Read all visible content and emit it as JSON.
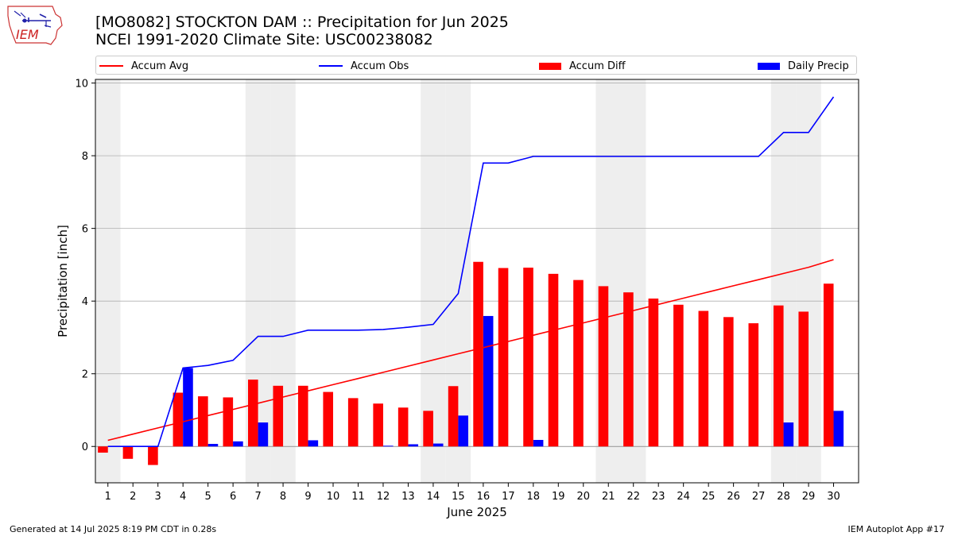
{
  "header": {
    "logo_text": "IEM",
    "title_line1": "[MO8082] STOCKTON DAM :: Precipitation for Jun 2025",
    "title_line2": "NCEI 1991-2020 Climate Site: USC00238082"
  },
  "legend": {
    "items": [
      {
        "label": "Accum Avg",
        "kind": "line",
        "color": "#ff0000"
      },
      {
        "label": "Accum Obs",
        "kind": "line",
        "color": "#0000ff"
      },
      {
        "label": "Accum Diff",
        "kind": "patch",
        "color": "#ff0000"
      },
      {
        "label": "Daily Precip",
        "kind": "patch",
        "color": "#0000ff"
      }
    ]
  },
  "footer": {
    "left": "Generated at 14 Jul 2025 8:19 PM CDT in 0.28s",
    "right": "IEM Autoplot App #17"
  },
  "colors": {
    "avg": "#ff0000",
    "obs": "#0000ff",
    "diff": "#ff0000",
    "daily": "#0000ff",
    "weekend_shade": "#eeeeee",
    "grid": "#b0b0b0"
  },
  "chart_data": {
    "type": "bar",
    "xlabel": "June 2025",
    "ylabel": "Precipitation [inch]",
    "xlim": [
      0.5,
      31
    ],
    "ylim": [
      -1,
      10.1
    ],
    "yticks": [
      0,
      2,
      4,
      6,
      8,
      10
    ],
    "grid": "y",
    "legend_position": "top",
    "x": [
      1,
      2,
      3,
      4,
      5,
      6,
      7,
      8,
      9,
      10,
      11,
      12,
      13,
      14,
      15,
      16,
      17,
      18,
      19,
      20,
      21,
      22,
      23,
      24,
      25,
      26,
      27,
      28,
      29,
      30
    ],
    "xtick_labels": [
      "1",
      "2",
      "3",
      "4",
      "5",
      "6",
      "7",
      "8",
      "9",
      "10",
      "11",
      "12",
      "13",
      "14",
      "15",
      "16",
      "17",
      "18",
      "19",
      "20",
      "21",
      "22",
      "23",
      "24",
      "25",
      "26",
      "27",
      "28",
      "29",
      "30"
    ],
    "shaded_days": [
      1,
      7,
      8,
      14,
      15,
      21,
      22,
      28,
      29
    ],
    "series": [
      {
        "name": "Accum Avg",
        "kind": "line",
        "values": [
          0.17,
          0.34,
          0.51,
          0.68,
          0.85,
          1.02,
          1.19,
          1.36,
          1.53,
          1.7,
          1.87,
          2.04,
          2.21,
          2.38,
          2.55,
          2.72,
          2.89,
          3.06,
          3.23,
          3.4,
          3.57,
          3.74,
          3.91,
          4.08,
          4.25,
          4.42,
          4.59,
          4.76,
          4.93,
          5.14
        ]
      },
      {
        "name": "Accum Obs",
        "kind": "line",
        "values": [
          0,
          0,
          0,
          2.16,
          2.23,
          2.37,
          3.03,
          3.03,
          3.2,
          3.2,
          3.2,
          3.22,
          3.28,
          3.36,
          4.21,
          7.8,
          7.8,
          7.98,
          7.98,
          7.98,
          7.98,
          7.98,
          7.98,
          7.98,
          7.98,
          7.98,
          7.98,
          8.64,
          8.64,
          9.62
        ]
      },
      {
        "name": "Accum Diff",
        "kind": "bar",
        "values": [
          -0.17,
          -0.34,
          -0.51,
          1.48,
          1.38,
          1.35,
          1.84,
          1.67,
          1.67,
          1.5,
          1.33,
          1.18,
          1.07,
          0.98,
          1.66,
          5.08,
          4.91,
          4.92,
          4.75,
          4.58,
          4.41,
          4.24,
          4.07,
          3.9,
          3.73,
          3.56,
          3.39,
          3.88,
          3.71,
          4.48
        ]
      },
      {
        "name": "Daily Precip",
        "kind": "bar",
        "values": [
          0,
          0,
          0,
          2.16,
          0.07,
          0.14,
          0.66,
          0,
          0.17,
          0,
          0,
          0.02,
          0.06,
          0.08,
          0.85,
          3.59,
          0,
          0.18,
          0,
          0,
          0,
          0,
          0,
          0,
          0,
          0,
          0,
          0.66,
          0,
          0.98
        ]
      }
    ]
  }
}
